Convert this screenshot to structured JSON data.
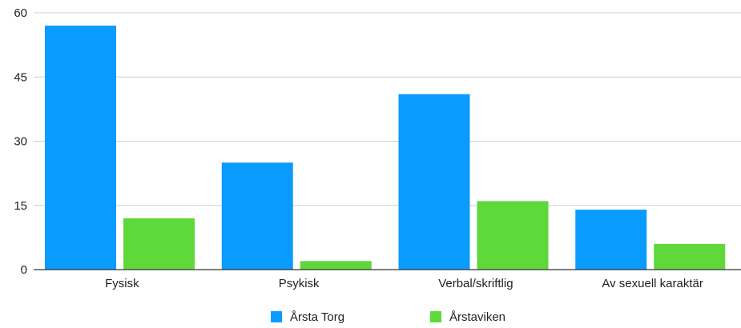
{
  "chart_data": {
    "type": "bar",
    "categories": [
      "Fysisk",
      "Psykisk",
      "Verbal/skriftlig",
      "Av sexuell karaktär"
    ],
    "series": [
      {
        "name": "Årsta Torg",
        "values": [
          57,
          25,
          41,
          14
        ],
        "color": "#0a9bff"
      },
      {
        "name": "Årstaviken",
        "values": [
          12,
          2,
          16,
          6
        ],
        "color": "#5fd83a"
      }
    ],
    "ylim": [
      0,
      60
    ],
    "yticks": [
      0,
      15,
      30,
      45,
      60
    ],
    "grid": true,
    "legend_position": "bottom"
  }
}
